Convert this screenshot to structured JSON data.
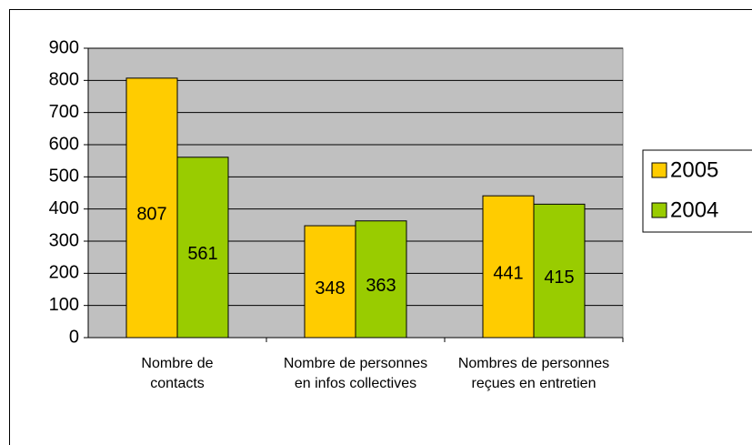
{
  "chart_data": {
    "type": "bar",
    "categories": [
      "Nombre de contacts",
      "Nombre de personnes en infos collectives",
      "Nombres de personnes reçues en entretien"
    ],
    "series": [
      {
        "name": "2005",
        "color": "#FFCC00",
        "values": [
          807,
          348,
          441
        ]
      },
      {
        "name": "2004",
        "color": "#99CC00",
        "values": [
          561,
          363,
          415
        ]
      }
    ],
    "ylim": [
      0,
      900
    ],
    "yticks": [
      0,
      100,
      200,
      300,
      400,
      500,
      600,
      700,
      800,
      900
    ],
    "grid": true,
    "legend": "right",
    "plot_background": "#C0C0C0"
  }
}
